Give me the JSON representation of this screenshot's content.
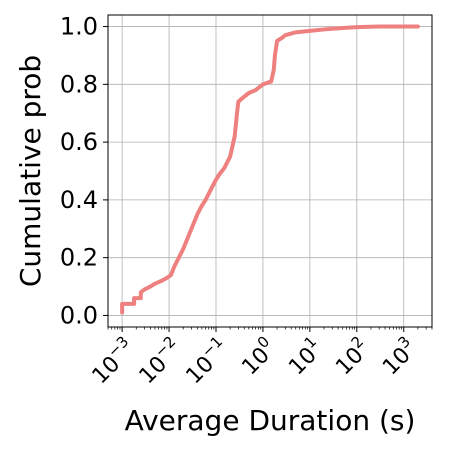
{
  "chart_data": {
    "type": "line",
    "xlabel": "Average Duration (s)",
    "ylabel": "Cumulative prob",
    "x_scale": "log",
    "xlim": [
      0.0005,
      4000
    ],
    "ylim": [
      -0.04,
      1.04
    ],
    "grid": true,
    "x_ticks": [
      {
        "value": 0.001,
        "base": "10",
        "exp": "−3"
      },
      {
        "value": 0.01,
        "base": "10",
        "exp": "−2"
      },
      {
        "value": 0.1,
        "base": "10",
        "exp": "−1"
      },
      {
        "value": 1,
        "base": "10",
        "exp": "0"
      },
      {
        "value": 10,
        "base": "10",
        "exp": "1"
      },
      {
        "value": 100,
        "base": "10",
        "exp": "2"
      },
      {
        "value": 1000,
        "base": "10",
        "exp": "3"
      }
    ],
    "y_ticks": [
      {
        "value": 0.0,
        "label": "0.0"
      },
      {
        "value": 0.2,
        "label": "0.2"
      },
      {
        "value": 0.4,
        "label": "0.4"
      },
      {
        "value": 0.6,
        "label": "0.6"
      },
      {
        "value": 0.8,
        "label": "0.8"
      },
      {
        "value": 1.0,
        "label": "1.0"
      }
    ],
    "series": [
      {
        "color": "#ee8080",
        "x": [
          0.001,
          0.001,
          0.0018,
          0.0018,
          0.0025,
          0.0025,
          0.003,
          0.004,
          0.005,
          0.007,
          0.009,
          0.011,
          0.013,
          0.015,
          0.02,
          0.03,
          0.04,
          0.05,
          0.06,
          0.08,
          0.1,
          0.12,
          0.15,
          0.2,
          0.25,
          0.28,
          0.3,
          0.35,
          0.5,
          0.7,
          1.0,
          1.5,
          1.7,
          1.8,
          2.0,
          2.5,
          3.0,
          5.0,
          10,
          20,
          50,
          100,
          300,
          1000,
          2000
        ],
        "y": [
          0.01,
          0.04,
          0.04,
          0.06,
          0.06,
          0.08,
          0.09,
          0.1,
          0.11,
          0.12,
          0.13,
          0.14,
          0.17,
          0.19,
          0.23,
          0.3,
          0.35,
          0.38,
          0.4,
          0.44,
          0.47,
          0.49,
          0.51,
          0.55,
          0.62,
          0.7,
          0.74,
          0.75,
          0.77,
          0.78,
          0.8,
          0.81,
          0.85,
          0.9,
          0.95,
          0.96,
          0.97,
          0.98,
          0.985,
          0.99,
          0.995,
          0.998,
          1.0,
          1.0,
          1.0
        ]
      }
    ]
  }
}
